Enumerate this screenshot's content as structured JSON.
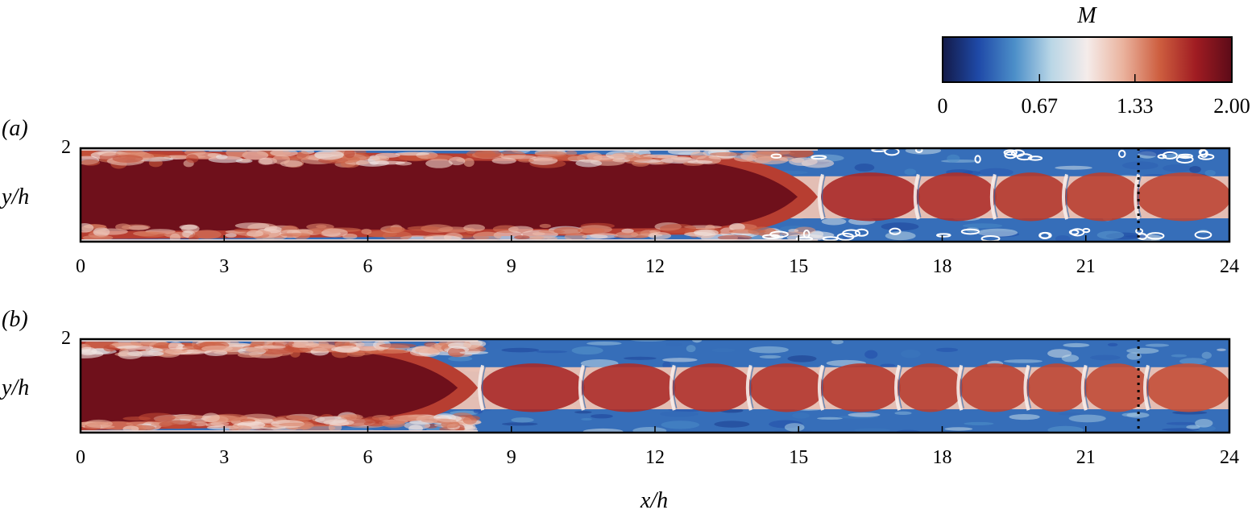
{
  "colorbar": {
    "label": "M",
    "ticks": [
      "0",
      "0.67",
      "1.33",
      "2.00"
    ],
    "tick_values": [
      0,
      0.67,
      1.33,
      2.0
    ],
    "range": [
      0,
      2.0
    ],
    "colors": [
      "#131a48",
      "#1f4aa8",
      "#4c8fc9",
      "#b9d6e6",
      "#f5ecea",
      "#eab29d",
      "#cd5e3f",
      "#a01c22",
      "#5c0b18"
    ]
  },
  "panels": [
    {
      "label": "(a)",
      "ylabel": "y/h",
      "y_ticks": [
        "2"
      ],
      "core_end_x": 15.4,
      "cells": [
        15.5,
        17.5,
        19.1,
        20.6,
        22.1
      ],
      "contours": true
    },
    {
      "label": "(b)",
      "ylabel": "y/h",
      "y_ticks": [
        "2"
      ],
      "core_end_x": 8.3,
      "cells": [
        8.4,
        10.5,
        12.4,
        14.0,
        15.5,
        17.1,
        18.4,
        19.8,
        21.0,
        22.3
      ],
      "contours": false
    }
  ],
  "x_ticks": [
    "0",
    "3",
    "6",
    "9",
    "12",
    "15",
    "18",
    "21",
    "24"
  ],
  "xlabel": "x/h",
  "chart_data": [
    {
      "type": "heatmap",
      "panel": "(a)",
      "variable": "M",
      "xlim": [
        0,
        24
      ],
      "ylim": [
        0,
        2
      ],
      "x_ticks": [
        0,
        3,
        6,
        9,
        12,
        15,
        18,
        21,
        24
      ],
      "y_ticks": [
        2
      ],
      "ylabel": "y/h",
      "xlabel": "",
      "colorbar_range": [
        0,
        2.0
      ],
      "reference_line_x": 22.1
    },
    {
      "type": "heatmap",
      "panel": "(b)",
      "variable": "M",
      "xlim": [
        0,
        24
      ],
      "ylim": [
        0,
        2
      ],
      "x_ticks": [
        0,
        3,
        6,
        9,
        12,
        15,
        18,
        21,
        24
      ],
      "y_ticks": [
        2
      ],
      "ylabel": "y/h",
      "xlabel": "x/h",
      "colorbar_range": [
        0,
        2.0
      ],
      "reference_line_x": 22.1
    }
  ]
}
